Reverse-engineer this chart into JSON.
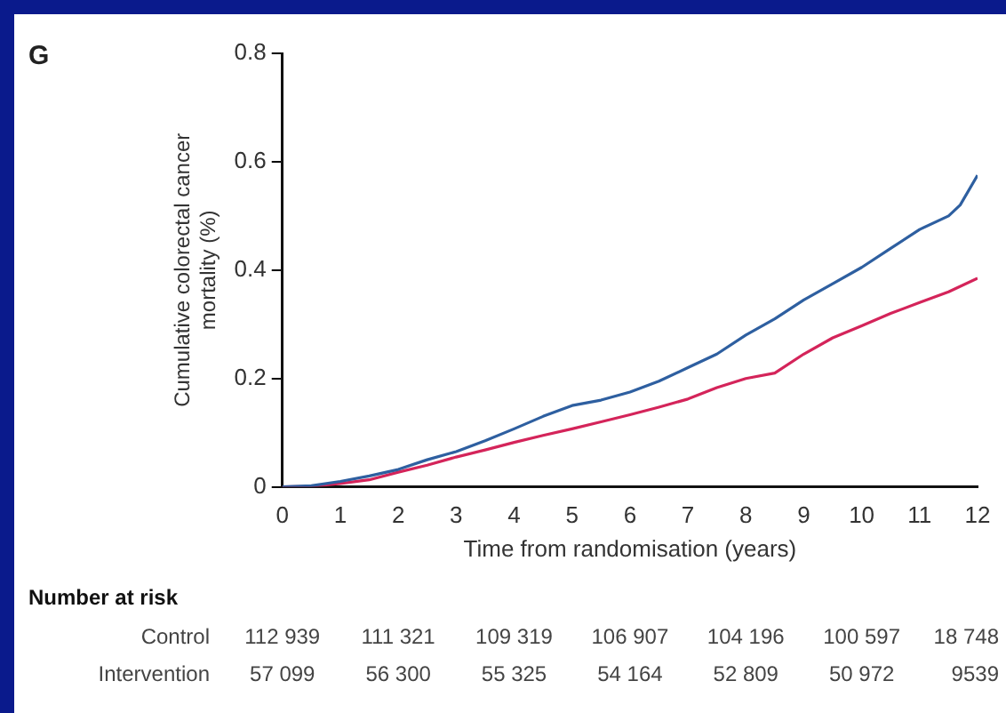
{
  "chart_data": {
    "type": "line",
    "title": "G",
    "xlabel": "Time from randomisation (years)",
    "ylabel": "Cumulative colorectal cancer mortality (%)",
    "xlim": [
      0,
      12
    ],
    "xticks": [
      0,
      1,
      2,
      3,
      4,
      5,
      6,
      7,
      8,
      9,
      10,
      11,
      12
    ],
    "ylim": [
      0,
      0.8
    ],
    "yticks": [
      0,
      0.2,
      0.4,
      0.6,
      0.8
    ],
    "grid": false,
    "legend": false,
    "marker": "none",
    "line_style": "solid",
    "series": [
      {
        "color": "#2e5fa0",
        "x": [
          0,
          0.5,
          1,
          1.5,
          2,
          2.5,
          3,
          3.5,
          4,
          4.5,
          5,
          5.5,
          6,
          6.5,
          7,
          7.5,
          8,
          8.5,
          9,
          9.5,
          10,
          10.5,
          11,
          11.5,
          11.7,
          12
        ],
        "values": [
          0,
          0.002,
          0.01,
          0.02,
          0.032,
          0.05,
          0.065,
          0.085,
          0.107,
          0.13,
          0.15,
          0.16,
          0.175,
          0.195,
          0.22,
          0.245,
          0.28,
          0.31,
          0.345,
          0.375,
          0.405,
          0.44,
          0.475,
          0.5,
          0.52,
          0.575
        ]
      },
      {
        "color": "#d4245a",
        "x": [
          0,
          0.5,
          1,
          1.5,
          2,
          2.5,
          3,
          3.5,
          4,
          4.5,
          5,
          5.5,
          6,
          6.5,
          7,
          7.5,
          8,
          8.5,
          9,
          9.5,
          10,
          10.5,
          11,
          11.5,
          12
        ],
        "values": [
          0,
          0.001,
          0.006,
          0.013,
          0.027,
          0.04,
          0.055,
          0.068,
          0.082,
          0.095,
          0.107,
          0.12,
          0.133,
          0.147,
          0.162,
          0.183,
          0.2,
          0.21,
          0.245,
          0.275,
          0.297,
          0.32,
          0.34,
          0.36,
          0.385
        ]
      }
    ],
    "annotations": [
      "Number at risk",
      "Control",
      "112 939",
      "111 321",
      "109 319",
      "106 907",
      "104 196",
      "100 597",
      "18 748",
      "Intervention",
      "57 099",
      "56 300",
      "55 325",
      "54 164",
      "52 809",
      "50 972",
      "9539"
    ]
  }
}
